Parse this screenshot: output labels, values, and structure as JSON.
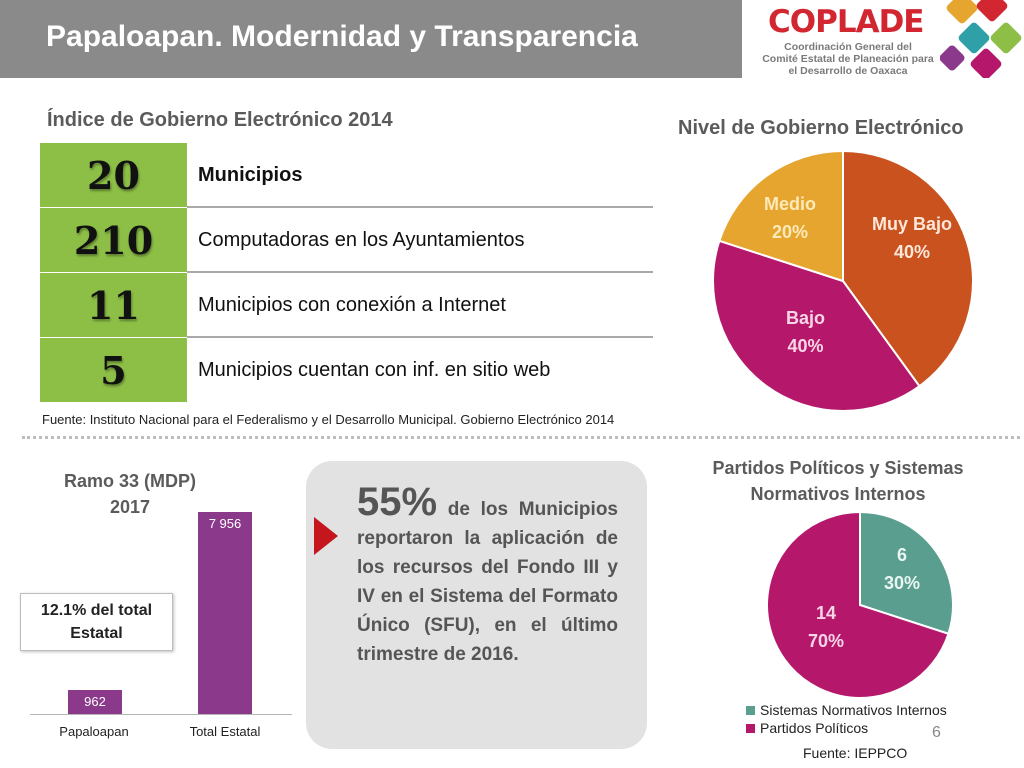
{
  "header": {
    "title": "Papaloapan. Modernidad y Transparencia",
    "logo_word": "COPLADE",
    "logo_lines": [
      "Coordinación General del",
      "Comité Estatal de Planeación para",
      "el Desarrollo de Oaxaca"
    ]
  },
  "egov_index": {
    "title": "Índice de Gobierno Electrónico 2014",
    "rows": [
      {
        "value": "20",
        "label": "Municipios"
      },
      {
        "value": "210",
        "label": "Computadoras en los Ayuntamientos"
      },
      {
        "value": "11",
        "label": "Municipios con conexión a Internet"
      },
      {
        "value": "5",
        "label": "Municipios cuentan con inf. en sitio web"
      }
    ],
    "source": "Fuente: Instituto Nacional para el Federalismo y el Desarrollo Municipal. Gobierno Electrónico 2014"
  },
  "ramo33": {
    "title_line1": "Ramo 33 (MDP)",
    "title_line2": "2017",
    "note_line1": "12.1% del total",
    "note_line2": "Estatal"
  },
  "callout": {
    "percent": "55%",
    "text": " de los Municipios reportaron la aplicación de los recursos del Fondo III y IV en el Sistema del Formato Único (SFU), en el último trimestre de 2016."
  },
  "partidos": {
    "title_line1": "Partidos Políticos y Sistemas",
    "title_line2": "Normativos Internos",
    "legend": [
      "Sistemas Normativos Internos",
      "Partidos Políticos"
    ],
    "source": "Fuente: IEPPCO"
  },
  "nivel": {
    "title": "Nivel de Gobierno Electrónico"
  },
  "page_number": "6",
  "colors": {
    "header_gray": "#8a8a8a",
    "stat_green": "#8dbf47",
    "muy_bajo": "#c9521e",
    "bajo": "#b5186b",
    "medio": "#e5a52f",
    "bar_purple": "#8b3a8b",
    "sni_teal": "#5a9e8f",
    "partidos_magenta": "#b5186b",
    "callout_red": "#c4161c"
  },
  "chart_data": [
    {
      "type": "pie",
      "title": "Nivel de Gobierno Electrónico",
      "labels": [
        "Muy Bajo",
        "Bajo",
        "Medio"
      ],
      "values": [
        40,
        40,
        20
      ],
      "value_labels": [
        "40%",
        "40%",
        "20%"
      ]
    },
    {
      "type": "bar",
      "title": "Ramo 33 (MDP) 2017",
      "categories": [
        "Papaloapan",
        "Total Estatal"
      ],
      "values": [
        962,
        7956
      ],
      "value_labels": [
        "962",
        "7 956"
      ]
    },
    {
      "type": "pie",
      "title": "Partidos Políticos y Sistemas Normativos Internos",
      "labels": [
        "Sistemas Normativos Internos",
        "Partidos Políticos"
      ],
      "values": [
        6,
        14
      ],
      "percent_labels": [
        "30%",
        "70%"
      ]
    }
  ]
}
